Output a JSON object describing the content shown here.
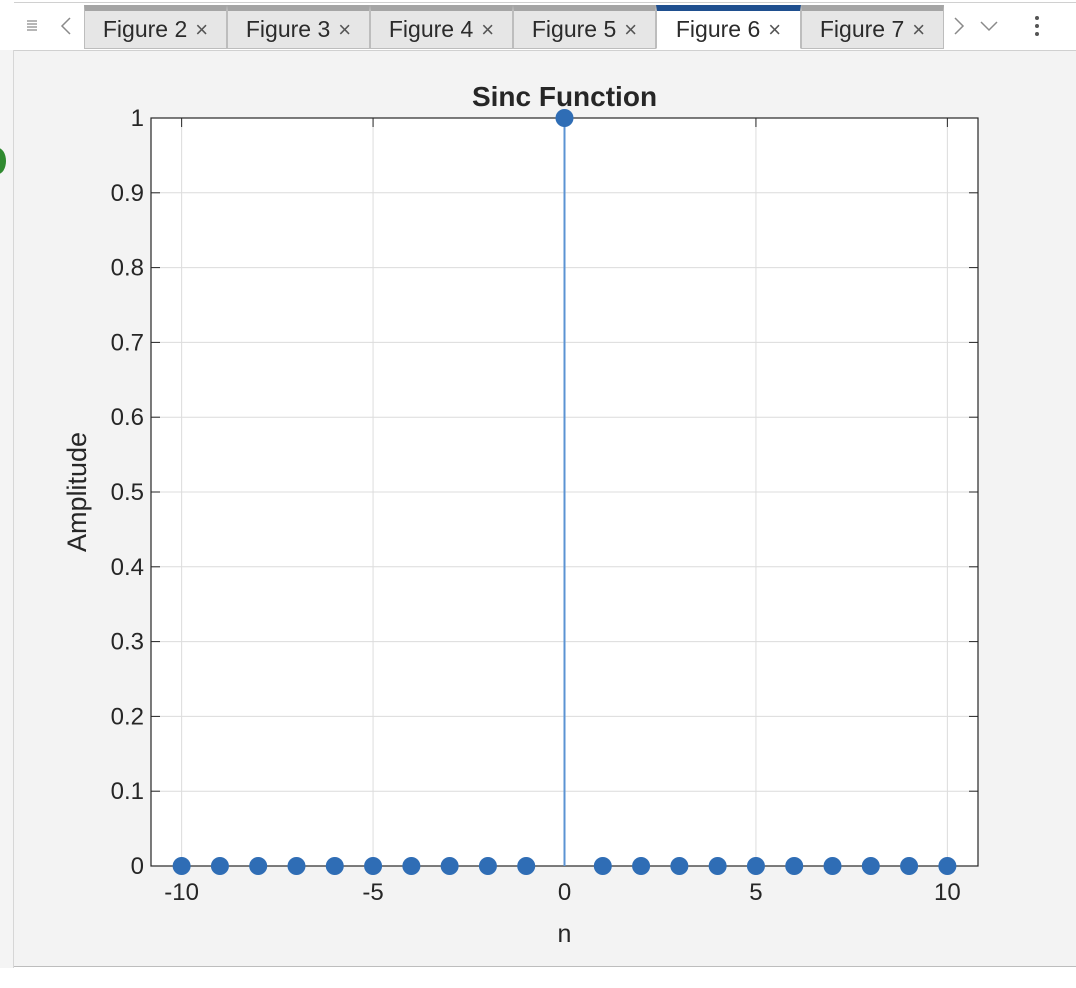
{
  "tabs": [
    {
      "label": "Figure 2",
      "active": false
    },
    {
      "label": "Figure 3",
      "active": false
    },
    {
      "label": "Figure 4",
      "active": false
    },
    {
      "label": "Figure 5",
      "active": false
    },
    {
      "label": "Figure 6",
      "active": true
    },
    {
      "label": "Figure 7",
      "active": false
    }
  ],
  "tab_close_glyph": "×",
  "icons": {
    "menu": "menu-icon",
    "scroll_left": "chevron-left-icon",
    "scroll_right": "chevron-right-icon",
    "dropdown": "chevron-down-icon",
    "more": "more-options-icon"
  },
  "colors": {
    "active_tab_accent": "#1f4f8f",
    "marker": "#2f6db5",
    "stem": "#5b93d3",
    "grid": "#dcdcdc"
  },
  "chart_data": {
    "type": "stem",
    "title": "Sinc Function",
    "xlabel": "n",
    "ylabel": "Amplitude",
    "xlim": [
      -10.8,
      10.8
    ],
    "ylim": [
      0,
      1
    ],
    "xticks": [
      -10,
      -5,
      0,
      5,
      10
    ],
    "yticks": [
      0,
      0.1,
      0.2,
      0.3,
      0.4,
      0.5,
      0.6,
      0.7,
      0.8,
      0.9,
      1
    ],
    "x": [
      -10,
      -9,
      -8,
      -7,
      -6,
      -5,
      -4,
      -3,
      -2,
      -1,
      0,
      1,
      2,
      3,
      4,
      5,
      6,
      7,
      8,
      9,
      10
    ],
    "y": [
      0,
      0,
      0,
      0,
      0,
      0,
      0,
      0,
      0,
      0,
      1,
      0,
      0,
      0,
      0,
      0,
      0,
      0,
      0,
      0,
      0
    ],
    "grid": true
  }
}
